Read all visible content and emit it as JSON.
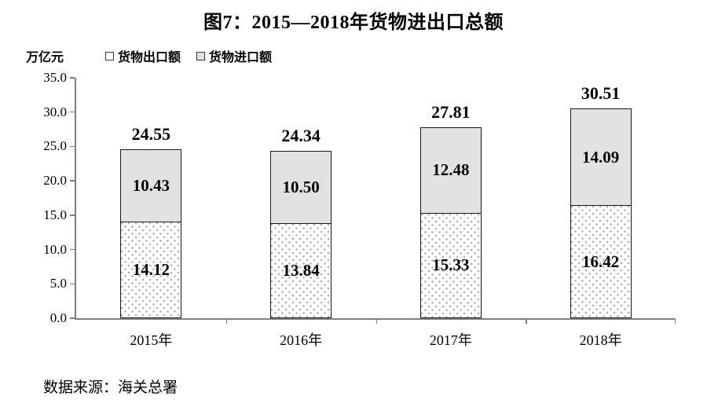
{
  "title": "图7：2015—2018年货物进出口总额",
  "unit_label": "万亿元",
  "source": "数据来源：海关总署",
  "colors": {
    "axis": "#808080",
    "bar_border": "#1a1a1a",
    "gray_fill": "#e2e2e2",
    "dot": "#a6a6a6",
    "text": "#000000"
  },
  "legend": [
    {
      "label": "货物出口额",
      "style": "dotted"
    },
    {
      "label": "货物进口额",
      "style": "gray"
    }
  ],
  "chart_data": {
    "type": "bar",
    "stacked": true,
    "title": "图7：2015—2018年货物进出口总额",
    "ylabel": "万亿元",
    "xlabel": "",
    "categories": [
      "2015年",
      "2016年",
      "2017年",
      "2018年"
    ],
    "series": [
      {
        "name": "货物出口额",
        "style": "dotted",
        "values": [
          14.12,
          13.84,
          15.33,
          16.42
        ],
        "labels": [
          "14.12",
          "13.84",
          "15.33",
          "16.42"
        ]
      },
      {
        "name": "货物进口额",
        "style": "gray",
        "values": [
          10.43,
          10.5,
          12.48,
          14.09
        ],
        "labels": [
          "10.43",
          "10.50",
          "12.48",
          "14.09"
        ]
      }
    ],
    "totals": [
      24.55,
      24.34,
      27.81,
      30.51
    ],
    "total_labels": [
      "24.55",
      "24.34",
      "27.81",
      "30.51"
    ],
    "ylim": [
      0,
      35
    ],
    "ytick_step": 5,
    "yticks": [
      "35.0",
      "30.0",
      "25.0",
      "20.0",
      "15.0",
      "10.0",
      "5.0",
      "0.0"
    ],
    "grid": false,
    "legend_position": "top-left"
  }
}
